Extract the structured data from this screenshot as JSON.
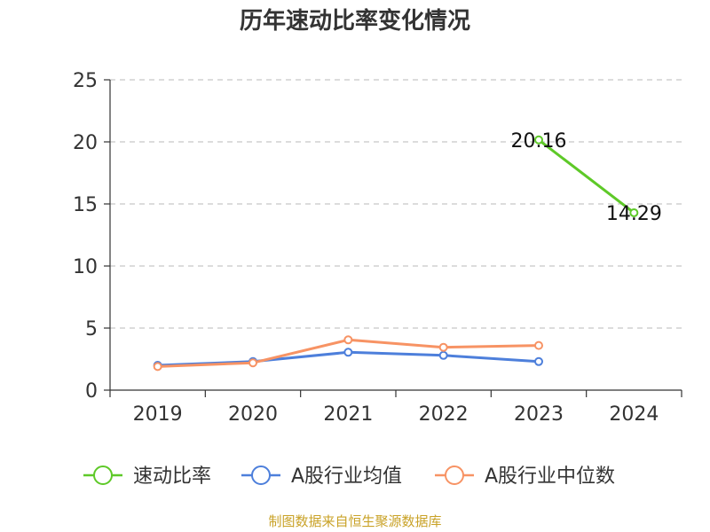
{
  "chart_data": {
    "type": "line",
    "title": "历年速动比率变化情况",
    "categories": [
      "2019",
      "2020",
      "2021",
      "2022",
      "2023",
      "2024"
    ],
    "ylim": [
      0,
      25
    ],
    "yticks": [
      0,
      5,
      10,
      15,
      20,
      25
    ],
    "grid": true,
    "legend_position": "bottom",
    "series": [
      {
        "name": "速动比率",
        "color": "#5ec928",
        "values": [
          null,
          null,
          null,
          null,
          20.16,
          14.29
        ],
        "labels": [
          "",
          "",
          "",
          "",
          "20.16",
          "14.29"
        ]
      },
      {
        "name": "A股行业均值",
        "color": "#4d7fdb",
        "values": [
          2.0,
          2.3,
          3.05,
          2.8,
          2.3,
          null
        ]
      },
      {
        "name": "A股行业中位数",
        "color": "#f79364",
        "values": [
          1.9,
          2.2,
          4.05,
          3.45,
          3.6,
          null
        ]
      }
    ]
  },
  "footer": {
    "source": "制图数据来自恒生聚源数据库"
  }
}
